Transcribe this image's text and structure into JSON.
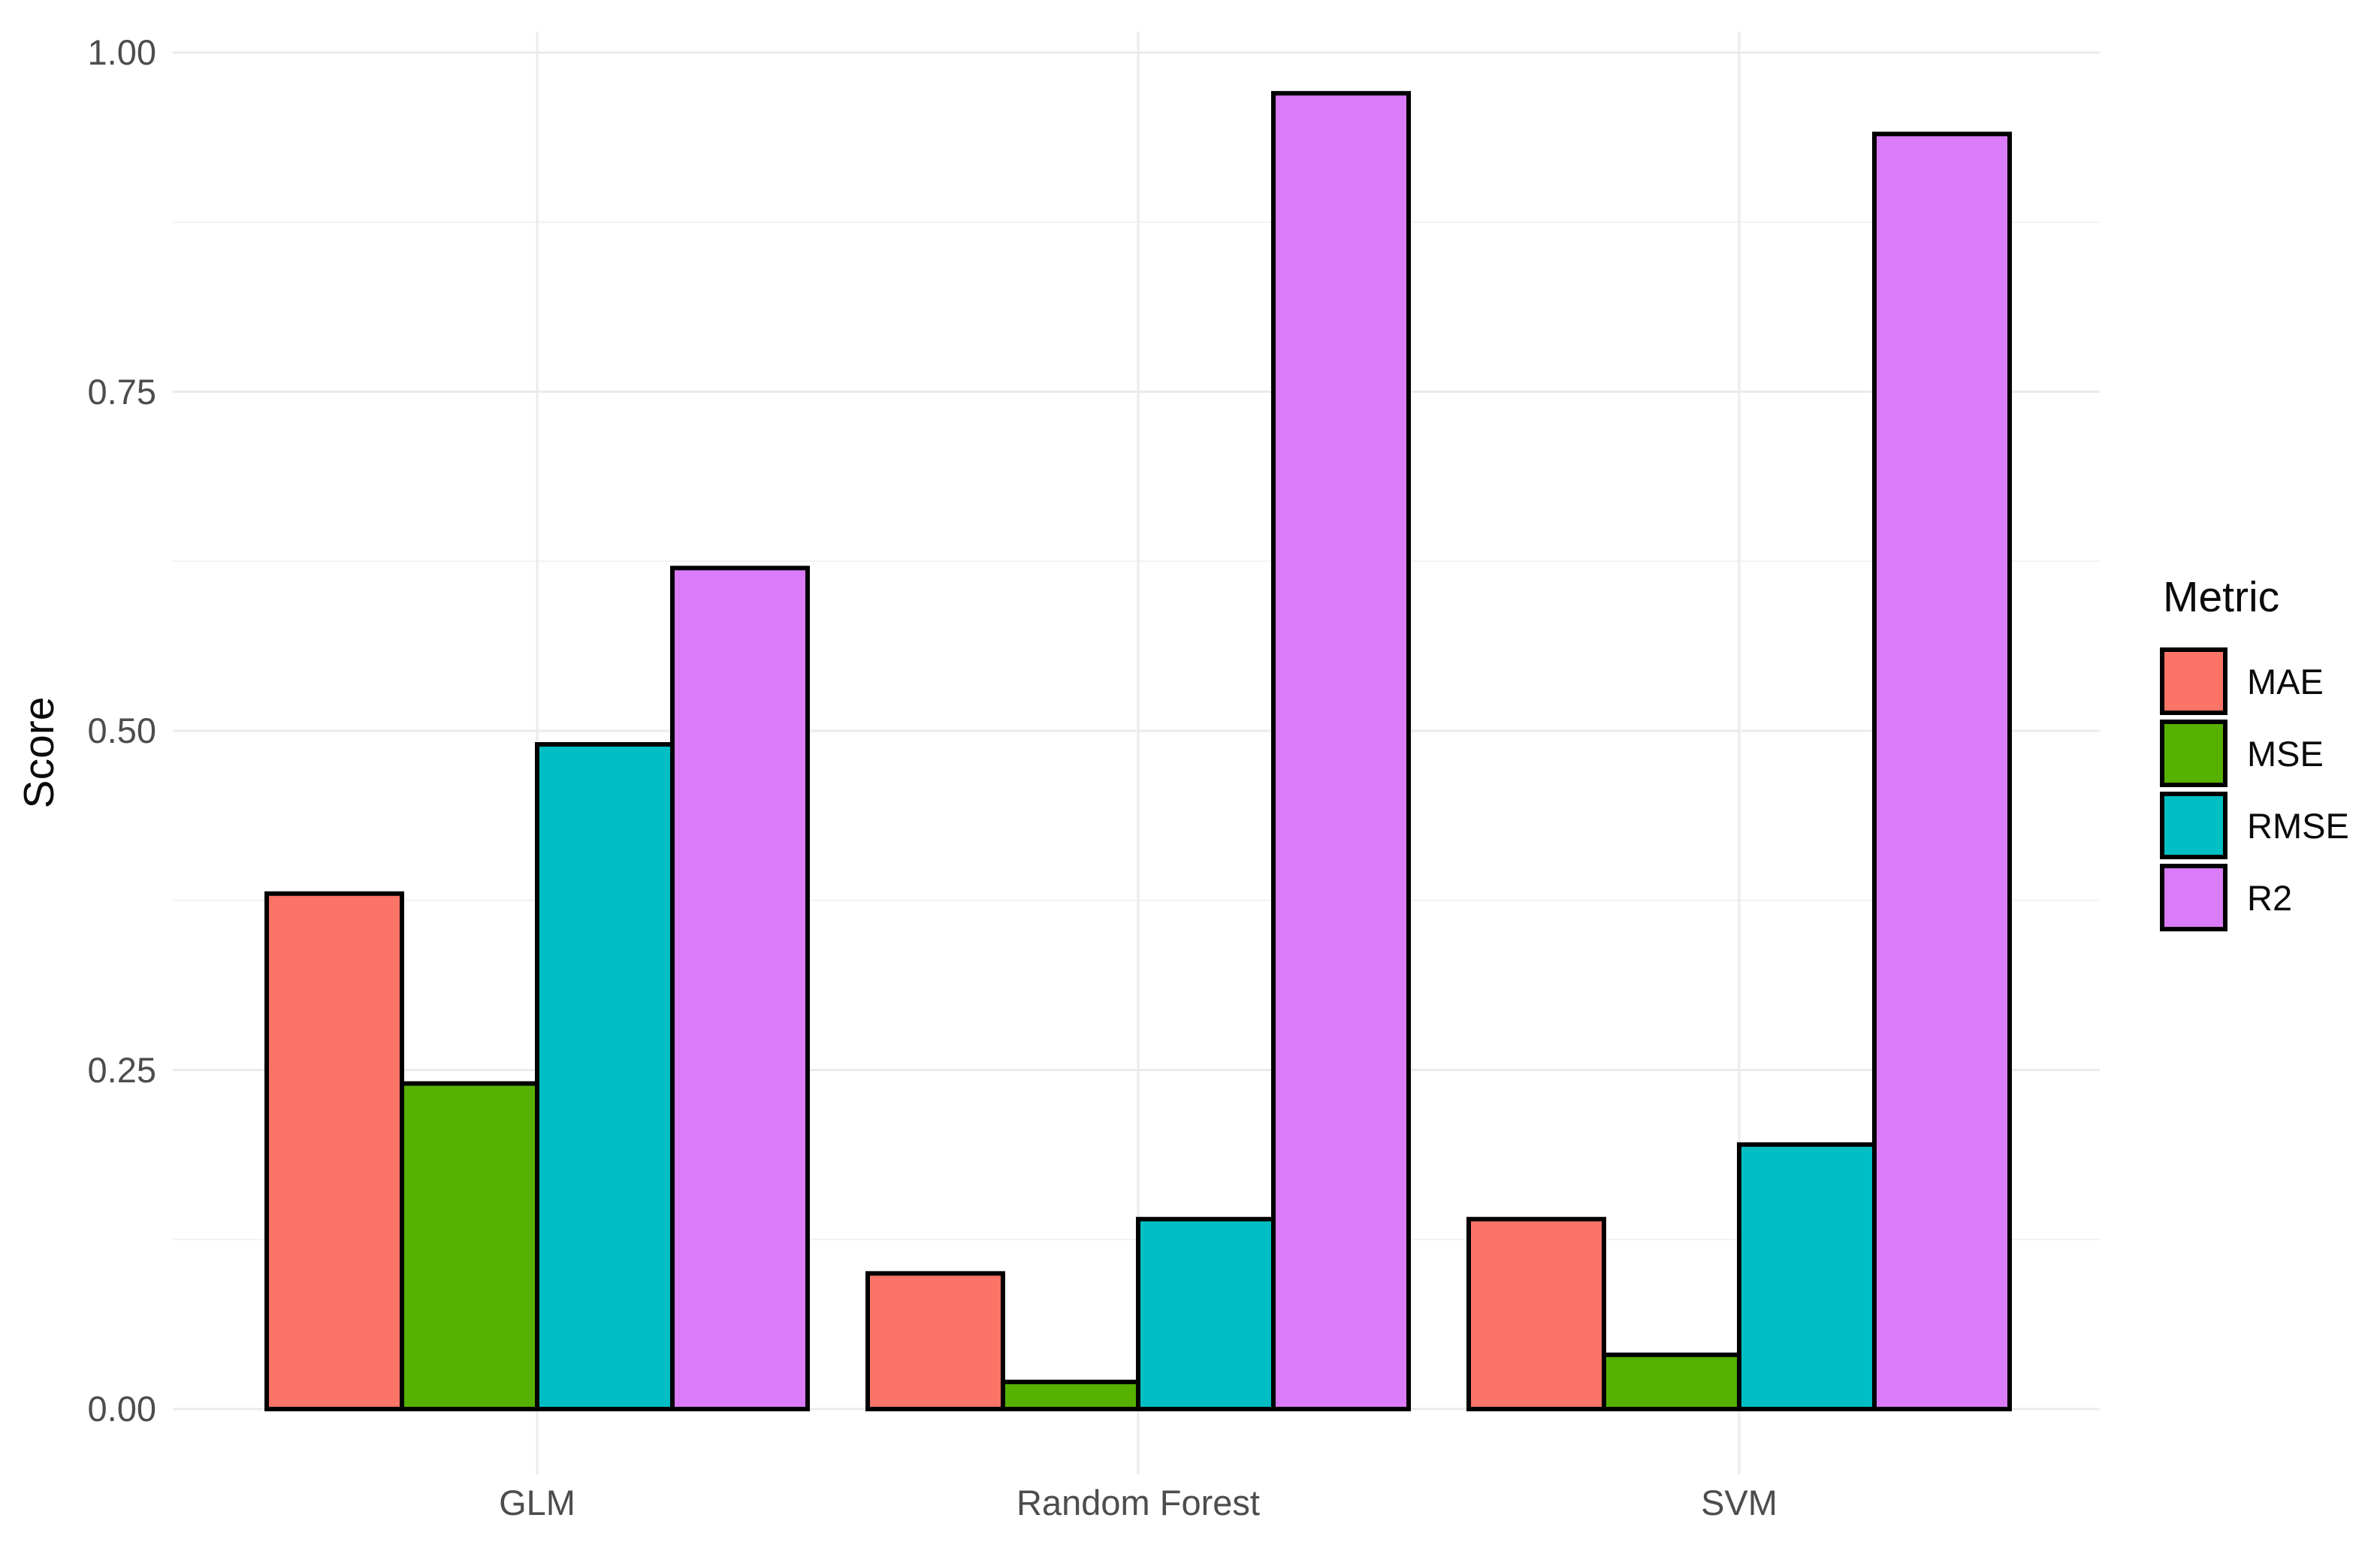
{
  "chart_data": {
    "type": "bar",
    "title": "",
    "categories": [
      "GLM",
      "Random Forest",
      "SVM"
    ],
    "series": [
      {
        "name": "MAE",
        "color": "#FB7467",
        "values": [
          0.38,
          0.1,
          0.14
        ]
      },
      {
        "name": "MSE",
        "color": "#56B000",
        "values": [
          0.24,
          0.02,
          0.04
        ]
      },
      {
        "name": "RMSE",
        "color": "#00BFC4",
        "values": [
          0.49,
          0.14,
          0.195
        ]
      },
      {
        "name": "R2",
        "color": "#DA7BF8",
        "values": [
          0.62,
          0.97,
          0.94
        ]
      }
    ],
    "xlabel": "",
    "ylabel": "Score",
    "legend_title": "Metric",
    "legend_position": "right",
    "y_ticks": [
      {
        "label": "0.00",
        "value": 0
      },
      {
        "label": "0.25",
        "value": 0.25
      },
      {
        "label": "0.50",
        "value": 0.5
      },
      {
        "label": "0.75",
        "value": 0.75
      },
      {
        "label": "1.00",
        "value": 1
      }
    ],
    "y_minor_ticks": [
      0.125,
      0.375,
      0.625,
      0.875
    ],
    "ylim": [
      -0.048,
      1.016
    ],
    "grid": "horizontal major+minor, vertical major at category centers",
    "bar_outline_color": "#000000"
  },
  "colors": {
    "background": "#FFFFFF",
    "grid_major": "#EBEBEB",
    "grid_minor": "#F2F2F2",
    "tick_label": "#4D4D4D",
    "axis_title": "#0A0A0A",
    "legend_text": "#0A0A0A"
  }
}
